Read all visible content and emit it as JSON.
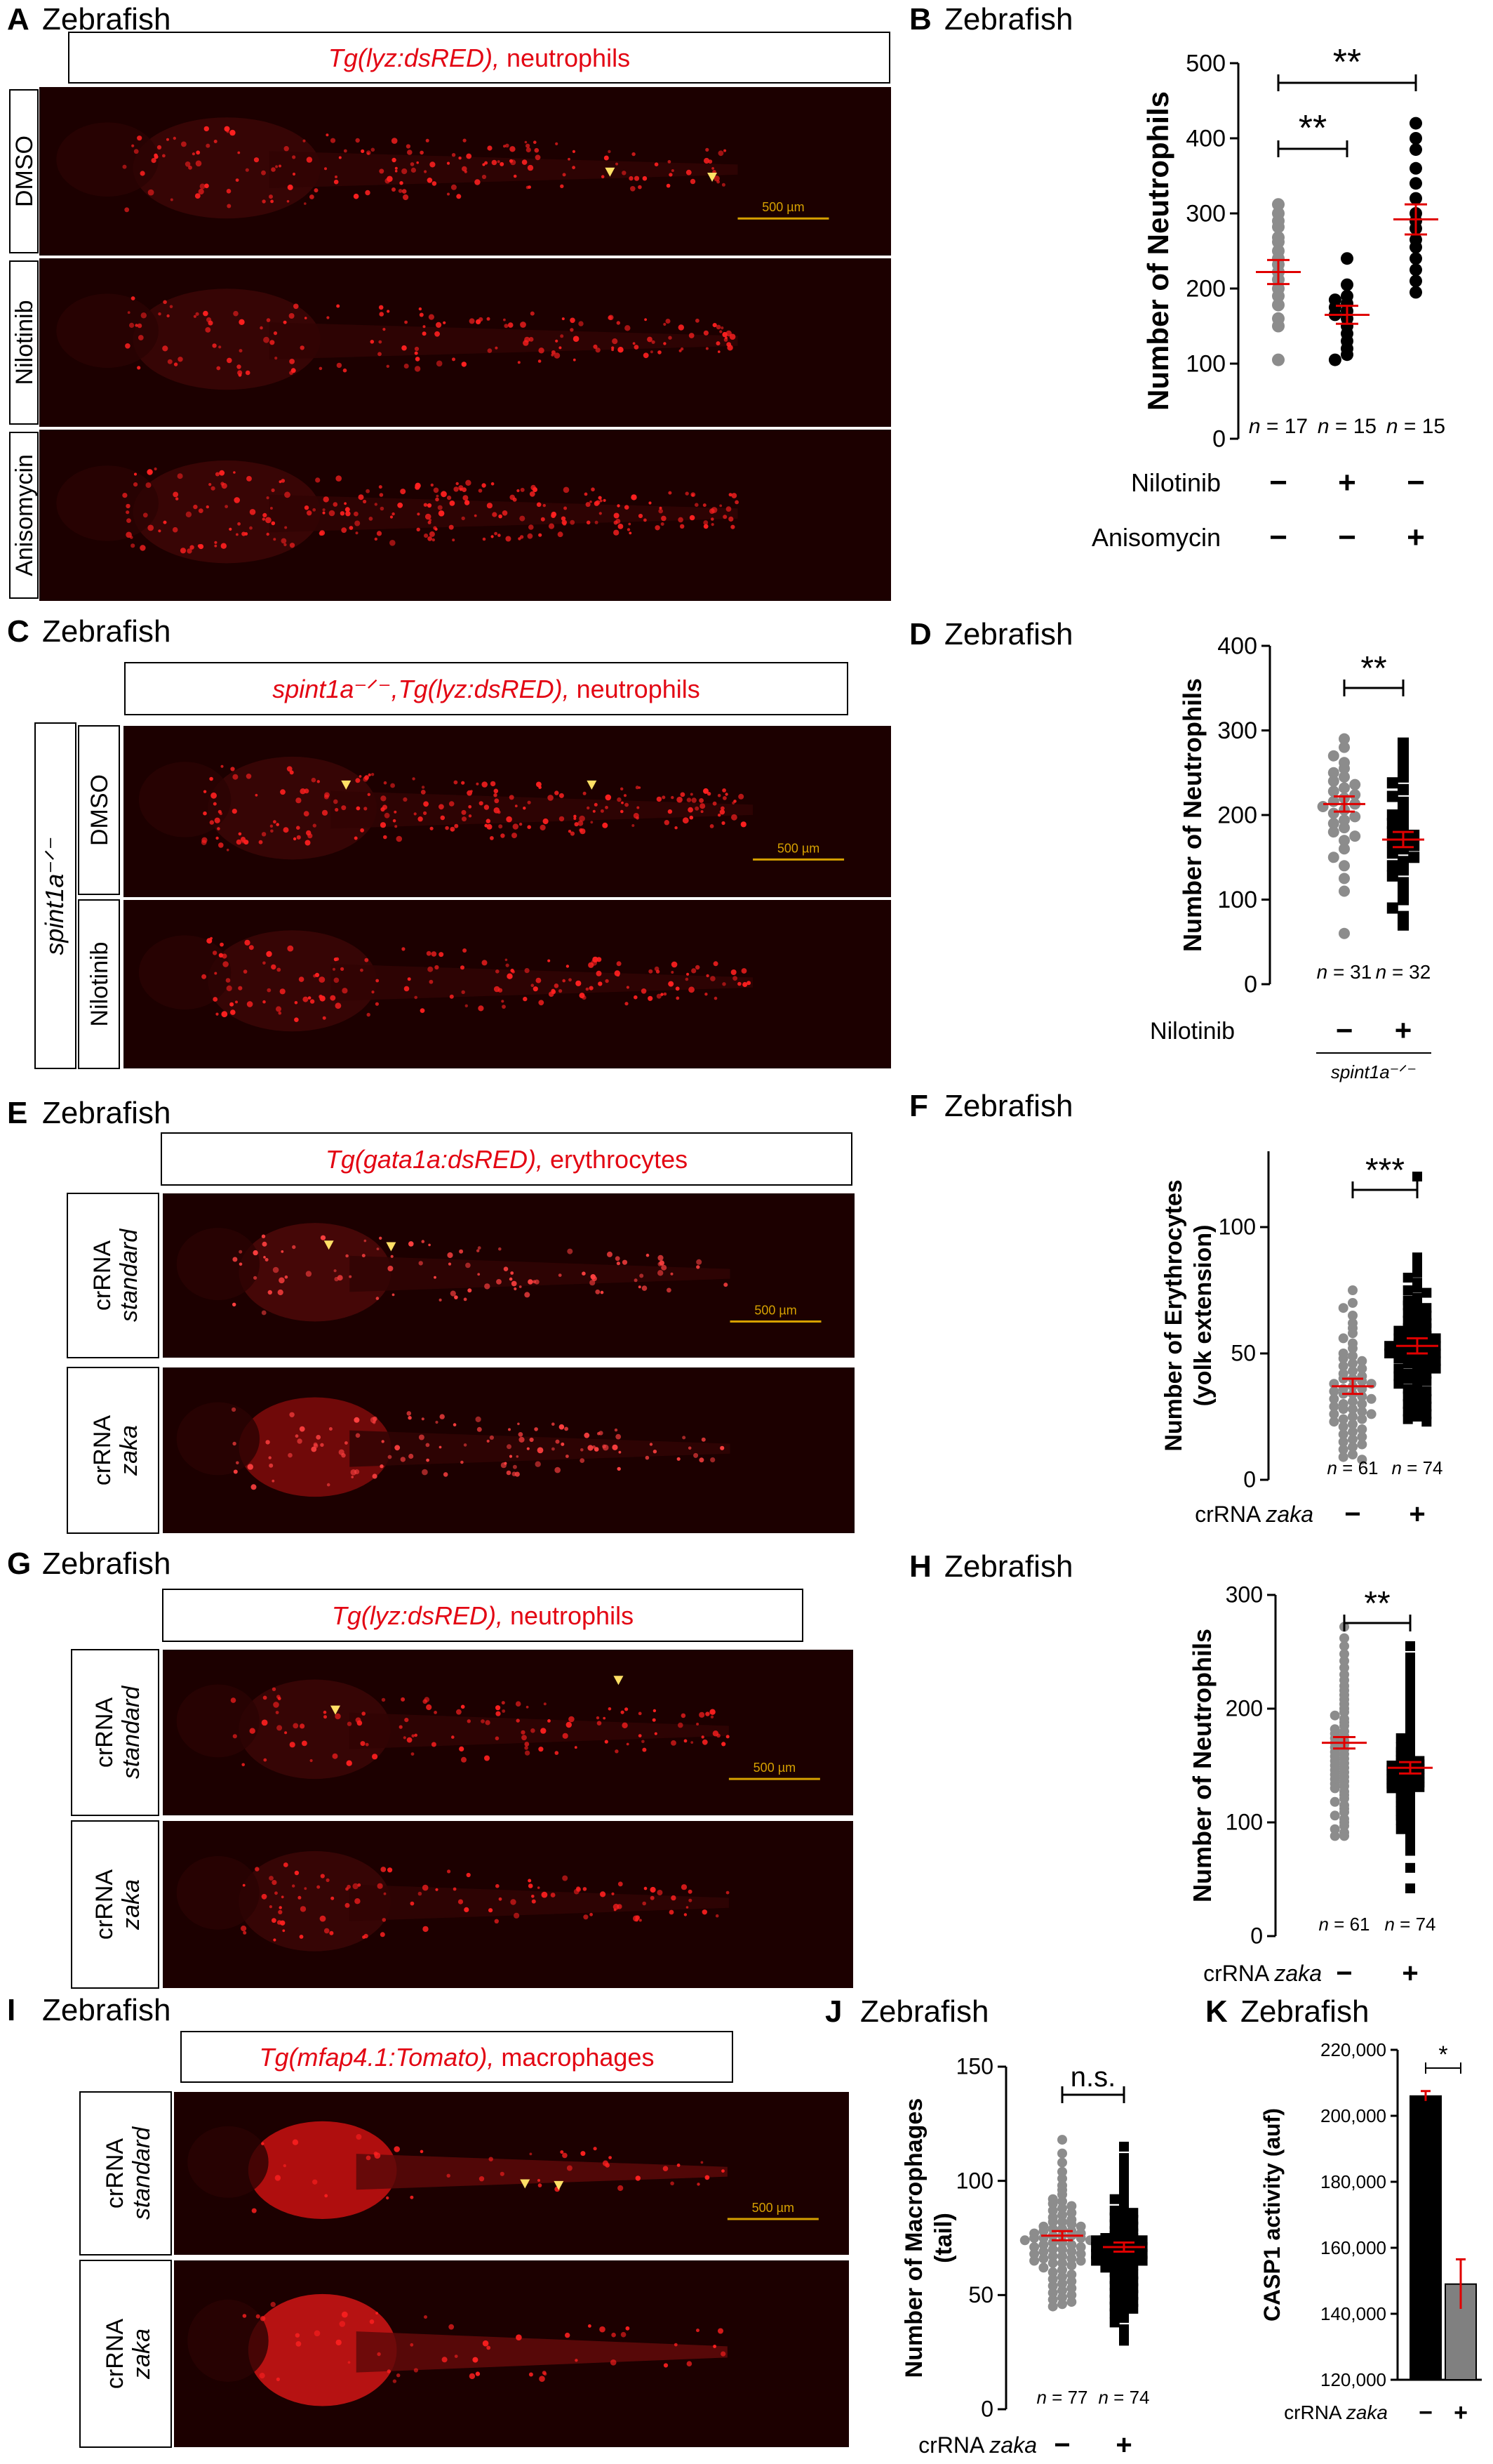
{
  "scale_bar_label": "500 µm",
  "colors": {
    "title_red": "#e30613",
    "mean_line": "#e00000",
    "gray_point": "#8c8c8c",
    "black_point": "#000000",
    "micrograph_bg": "#1c0000",
    "scale_bar": "#d6a000",
    "arrowhead": "#ffe066"
  },
  "panels": {
    "A": {
      "letter": "A",
      "species": "Zebrafish",
      "title_italic": "Tg(lyz:dsRED),",
      "title_rest": " neutrophils",
      "conditions": [
        "DMSO",
        "Nilotinib",
        "Anisomycin"
      ]
    },
    "B": {
      "letter": "B",
      "species": "Zebrafish"
    },
    "C": {
      "letter": "C",
      "species": "Zebrafish",
      "title_italic": "spint1a⁻ᐟ⁻,Tg(lyz:dsRED),",
      "title_rest": " neutrophils",
      "genotype": "spint1a⁻ᐟ⁻",
      "conditions": [
        "DMSO",
        "Nilotinib"
      ]
    },
    "D": {
      "letter": "D",
      "species": "Zebrafish"
    },
    "E": {
      "letter": "E",
      "species": "Zebrafish",
      "title_italic": "Tg(gata1a:dsRED),",
      "title_rest": " erythrocytes",
      "conditions": [
        [
          "crRNA",
          "standard"
        ],
        [
          "crRNA",
          "zaka"
        ]
      ]
    },
    "F": {
      "letter": "F",
      "species": "Zebrafish"
    },
    "G": {
      "letter": "G",
      "species": "Zebrafish",
      "title_italic": "Tg(lyz:dsRED),",
      "title_rest": " neutrophils",
      "conditions": [
        [
          "crRNA",
          "standard"
        ],
        [
          "crRNA",
          "zaka"
        ]
      ]
    },
    "H": {
      "letter": "H",
      "species": "Zebrafish"
    },
    "I": {
      "letter": "I",
      "species": "Zebrafish",
      "title_italic": "Tg(mfap4.1:Tomato),",
      "title_rest": " macrophages",
      "conditions": [
        [
          "crRNA",
          "standard"
        ],
        [
          "crRNA",
          "zaka"
        ]
      ]
    },
    "J": {
      "letter": "J",
      "species": "Zebrafish"
    },
    "K": {
      "letter": "K",
      "species": "Zebrafish"
    }
  },
  "chart_data": [
    {
      "panel": "B",
      "type": "scatter",
      "ylabel": "Number of Neutrophils",
      "ylim": [
        0,
        500
      ],
      "yticks": [
        "0",
        "100",
        "200",
        "300",
        "400",
        "500"
      ],
      "groups": [
        {
          "n_label": "n = 17",
          "mean": 222,
          "sem": 16,
          "point_color": "gray",
          "marker": "circle",
          "values": [
            312,
            300,
            290,
            282,
            268,
            262,
            250,
            240,
            232,
            222,
            212,
            200,
            190,
            178,
            160,
            150,
            105
          ]
        },
        {
          "n_label": "n = 15",
          "mean": 165,
          "sem": 12,
          "point_color": "black",
          "marker": "circle",
          "values": [
            240,
            205,
            190,
            185,
            180,
            175,
            170,
            165,
            160,
            150,
            140,
            130,
            120,
            112,
            105
          ]
        },
        {
          "n_label": "n = 15",
          "mean": 292,
          "sem": 20,
          "point_color": "black",
          "marker": "circle",
          "values": [
            420,
            400,
            385,
            360,
            340,
            320,
            300,
            290,
            280,
            265,
            255,
            240,
            225,
            210,
            195
          ]
        }
      ],
      "significance": [
        {
          "from": 0,
          "to": 1,
          "label": "**"
        },
        {
          "from": 0,
          "to": 2,
          "label": "**"
        }
      ],
      "conditions": [
        {
          "label": "Nilotinib",
          "signs": [
            "−",
            "+",
            "−"
          ]
        },
        {
          "label": "Anisomycin",
          "signs": [
            "−",
            "−",
            "+"
          ]
        }
      ]
    },
    {
      "panel": "D",
      "type": "scatter",
      "ylabel": "Number of Neutrophils",
      "ylim": [
        0,
        400
      ],
      "yticks": [
        "0",
        "100",
        "200",
        "300",
        "400"
      ],
      "groups": [
        {
          "n_label": "n = 31",
          "mean": 213,
          "sem": 9,
          "point_color": "gray",
          "marker": "circle",
          "values": [
            290,
            280,
            270,
            262,
            255,
            250,
            245,
            240,
            236,
            232,
            228,
            224,
            220,
            216,
            213,
            210,
            206,
            202,
            198,
            194,
            190,
            185,
            180,
            175,
            170,
            160,
            150,
            140,
            125,
            110,
            60
          ]
        },
        {
          "n_label": "n = 32",
          "mean": 171,
          "sem": 9,
          "point_color": "black",
          "marker": "square",
          "values": [
            285,
            275,
            265,
            255,
            245,
            238,
            230,
            222,
            215,
            208,
            200,
            195,
            190,
            185,
            180,
            176,
            172,
            168,
            164,
            160,
            155,
            150,
            145,
            140,
            135,
            128,
            120,
            112,
            100,
            90,
            80,
            70
          ]
        }
      ],
      "significance": [
        {
          "from": 0,
          "to": 1,
          "label": "**"
        }
      ],
      "conditions": [
        {
          "label": "Nilotinib",
          "signs": [
            "−",
            "+"
          ]
        }
      ],
      "footer_label": "spint1a⁻ᐟ⁻"
    },
    {
      "panel": "F",
      "type": "scatter",
      "ylabel": "Number of Erythrocytes",
      "ylabel2": "(yolk extension)",
      "ylim": [
        0,
        130
      ],
      "yticks": [
        "0",
        "50",
        "100"
      ],
      "groups": [
        {
          "n_label": "n = 61",
          "mean": 37,
          "sem": 3,
          "point_color": "gray",
          "marker": "circle",
          "values": [
            75,
            70,
            68,
            65,
            62,
            60,
            58,
            56,
            54,
            52,
            50,
            49,
            48,
            47,
            46,
            45,
            44,
            43,
            42,
            41,
            40,
            40,
            39,
            38,
            38,
            37,
            36,
            36,
            35,
            34,
            34,
            33,
            32,
            32,
            31,
            30,
            30,
            29,
            28,
            28,
            27,
            26,
            26,
            25,
            24,
            24,
            23,
            22,
            21,
            20,
            19,
            18,
            17,
            16,
            15,
            14,
            13,
            12,
            10,
            9,
            8
          ]
        },
        {
          "n_label": "n = 74",
          "mean": 53,
          "sem": 3,
          "point_color": "black",
          "marker": "square",
          "values": [
            120,
            88,
            85,
            82,
            80,
            78,
            76,
            75,
            74,
            72,
            71,
            70,
            69,
            68,
            67,
            66,
            65,
            64,
            63,
            62,
            61,
            60,
            60,
            59,
            58,
            58,
            57,
            56,
            56,
            55,
            55,
            54,
            54,
            53,
            53,
            52,
            52,
            51,
            51,
            50,
            50,
            49,
            49,
            48,
            48,
            47,
            46,
            46,
            45,
            44,
            44,
            43,
            42,
            42,
            41,
            40,
            40,
            39,
            38,
            37,
            36,
            35,
            34,
            33,
            32,
            31,
            30,
            29,
            28,
            27,
            26,
            25,
            24,
            23
          ]
        }
      ],
      "significance": [
        {
          "from": 0,
          "to": 1,
          "label": "***"
        }
      ],
      "conditions": [
        {
          "label": "crRNA zaka",
          "signs": [
            "−",
            "+"
          ]
        }
      ]
    },
    {
      "panel": "H",
      "type": "scatter",
      "ylabel": "Number of Neutrophils",
      "ylim": [
        0,
        300
      ],
      "yticks": [
        "0",
        "100",
        "200",
        "300"
      ],
      "groups": [
        {
          "n_label": "n = 61",
          "mean": 170,
          "sem": 5,
          "point_color": "gray",
          "marker": "circle",
          "values": [
            272,
            262,
            255,
            248,
            242,
            236,
            230,
            225,
            220,
            216,
            212,
            208,
            204,
            200,
            197,
            194,
            191,
            188,
            185,
            182,
            180,
            178,
            176,
            174,
            172,
            170,
            168,
            166,
            164,
            162,
            160,
            158,
            156,
            154,
            152,
            150,
            148,
            146,
            144,
            142,
            140,
            138,
            136,
            134,
            132,
            130,
            127,
            124,
            121,
            118,
            115,
            112,
            109,
            106,
            103,
            100,
            97,
            94,
            91,
            88,
            88
          ]
        },
        {
          "n_label": "n = 74",
          "mean": 148,
          "sem": 5,
          "point_color": "black",
          "marker": "square",
          "values": [
            255,
            245,
            238,
            230,
            224,
            218,
            212,
            206,
            200,
            196,
            192,
            188,
            184,
            180,
            177,
            174,
            171,
            168,
            166,
            164,
            162,
            160,
            158,
            156,
            155,
            154,
            153,
            152,
            151,
            150,
            149,
            148,
            147,
            146,
            145,
            144,
            143,
            142,
            141,
            140,
            139,
            138,
            137,
            136,
            135,
            134,
            133,
            132,
            131,
            130,
            128,
            126,
            124,
            122,
            120,
            118,
            116,
            114,
            112,
            110,
            108,
            106,
            104,
            102,
            100,
            97,
            94,
            91,
            88,
            85,
            80,
            75,
            60,
            42
          ]
        }
      ],
      "significance": [
        {
          "from": 0,
          "to": 1,
          "label": "**"
        }
      ],
      "conditions": [
        {
          "label": "crRNA zaka",
          "signs": [
            "−",
            "+"
          ]
        }
      ]
    },
    {
      "panel": "J",
      "type": "scatter",
      "ylabel": "Number of Macrophages",
      "ylabel2": "(tail)",
      "ylim": [
        0,
        150
      ],
      "yticks": [
        "0",
        "50",
        "100",
        "150"
      ],
      "groups": [
        {
          "n_label": "n = 77",
          "mean": 76,
          "sem": 2,
          "point_color": "gray",
          "marker": "circle",
          "values": [
            118,
            112,
            108,
            104,
            101,
            98,
            96,
            94,
            92,
            91,
            90,
            89,
            88,
            87,
            86,
            85,
            84,
            83,
            82,
            82,
            81,
            80,
            80,
            79,
            79,
            78,
            78,
            77,
            77,
            76,
            76,
            76,
            75,
            75,
            75,
            74,
            74,
            74,
            73,
            73,
            72,
            72,
            71,
            71,
            70,
            70,
            69,
            69,
            68,
            68,
            67,
            67,
            66,
            66,
            65,
            65,
            64,
            64,
            63,
            62,
            61,
            60,
            59,
            58,
            57,
            56,
            55,
            54,
            53,
            52,
            51,
            50,
            49,
            48,
            47,
            46,
            45
          ]
        },
        {
          "n_label": "n = 74",
          "mean": 71,
          "sem": 2,
          "point_color": "black",
          "marker": "square",
          "values": [
            115,
            110,
            106,
            102,
            99,
            96,
            94,
            92,
            90,
            88,
            87,
            86,
            85,
            84,
            83,
            82,
            81,
            80,
            79,
            78,
            77,
            76,
            76,
            75,
            75,
            74,
            74,
            73,
            73,
            72,
            72,
            71,
            71,
            70,
            70,
            69,
            69,
            68,
            68,
            67,
            67,
            66,
            66,
            65,
            65,
            64,
            64,
            63,
            62,
            61,
            60,
            59,
            58,
            57,
            56,
            55,
            54,
            53,
            52,
            51,
            50,
            49,
            48,
            47,
            46,
            45,
            44,
            43,
            42,
            40,
            38,
            35,
            32,
            30
          ]
        }
      ],
      "significance": [
        {
          "from": 0,
          "to": 1,
          "label": "n.s."
        }
      ],
      "conditions": [
        {
          "label": "crRNA zaka",
          "signs": [
            "−",
            "+"
          ]
        }
      ]
    },
    {
      "panel": "K",
      "type": "bar",
      "ylabel": "CASP1 activity (auf)",
      "ylim": [
        120000,
        220000
      ],
      "yticks": [
        "120,000",
        "140,000",
        "160,000",
        "180,000",
        "200,000",
        "220,000"
      ],
      "categories": [
        "−",
        "+"
      ],
      "values": [
        206000,
        149000
      ],
      "errors": [
        1500,
        7500
      ],
      "bar_colors": [
        "#000000",
        "#808080"
      ],
      "significance": [
        {
          "from": 0,
          "to": 1,
          "label": "*"
        }
      ],
      "conditions": [
        {
          "label": "crRNA zaka",
          "signs": [
            "−",
            "+"
          ]
        }
      ]
    }
  ]
}
